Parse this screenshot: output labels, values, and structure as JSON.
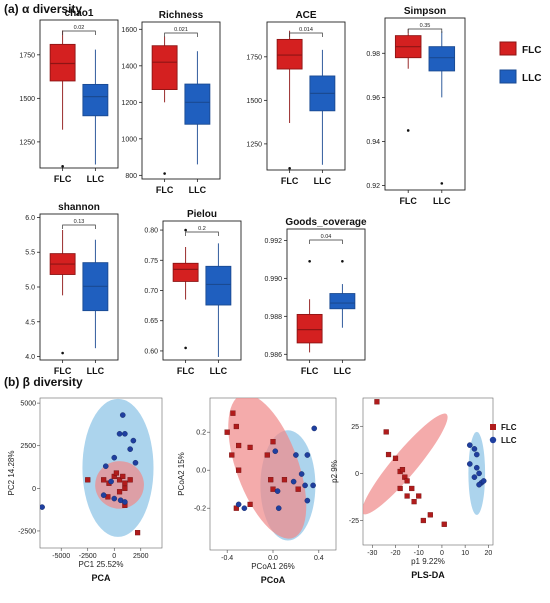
{
  "section_a_label": "(a) α diversity",
  "section_b_label": "(b) β diversity",
  "colors": {
    "FLC": "#d42020",
    "LLC": "#1f5fbf",
    "FLC_ellipse": "#f08a8a",
    "LLC_ellipse": "#8cc4e6",
    "FLC_edge": "#8e1414",
    "LLC_edge": "#1a4a92"
  },
  "alpha_legend": [
    "FLC",
    "LLC"
  ],
  "beta_legend": [
    "FLC",
    "LLC"
  ],
  "chart_data": [
    {
      "type": "box",
      "title": "chao1",
      "categories": [
        "FLC",
        "LLC"
      ],
      "ylim": [
        1100,
        1950
      ],
      "yticks": [
        "1250",
        "1500",
        "1750"
      ],
      "yticks_values": [
        1250,
        1500,
        1750
      ],
      "pvalue": "0.02",
      "series": [
        {
          "name": "FLC",
          "min": 1320,
          "q1": 1600,
          "median": 1700,
          "q3": 1810,
          "max": 1890,
          "outliers": [
            1110
          ]
        },
        {
          "name": "LLC",
          "min": 1120,
          "q1": 1400,
          "median": 1510,
          "q3": 1580,
          "max": 1780,
          "outliers": []
        }
      ]
    },
    {
      "type": "box",
      "title": "Richness",
      "categories": [
        "FLC",
        "LLC"
      ],
      "ylim": [
        780,
        1640
      ],
      "yticks": [
        "800",
        "1000",
        "1200",
        "1400",
        "1600"
      ],
      "yticks_values": [
        800,
        1000,
        1200,
        1400,
        1600
      ],
      "pvalue": "0.021",
      "series": [
        {
          "name": "FLC",
          "min": 1200,
          "q1": 1270,
          "median": 1420,
          "q3": 1510,
          "max": 1560,
          "outliers": [
            810
          ]
        },
        {
          "name": "LLC",
          "min": 860,
          "q1": 1080,
          "median": 1200,
          "q3": 1300,
          "max": 1480,
          "outliers": []
        }
      ]
    },
    {
      "type": "box",
      "title": "ACE",
      "categories": [
        "FLC",
        "LLC"
      ],
      "ylim": [
        1100,
        1950
      ],
      "yticks": [
        "1250",
        "1500",
        "1750"
      ],
      "yticks_values": [
        1250,
        1500,
        1750
      ],
      "pvalue": "0.014",
      "series": [
        {
          "name": "FLC",
          "min": 1370,
          "q1": 1680,
          "median": 1760,
          "q3": 1850,
          "max": 1900,
          "outliers": [
            1110
          ]
        },
        {
          "name": "LLC",
          "min": 1130,
          "q1": 1440,
          "median": 1540,
          "q3": 1640,
          "max": 1790,
          "outliers": []
        }
      ]
    },
    {
      "type": "box",
      "title": "Simpson",
      "categories": [
        "FLC",
        "LLC"
      ],
      "ylim": [
        0.918,
        0.996
      ],
      "yticks": [
        "0.92",
        "0.94",
        "0.96",
        "0.98"
      ],
      "yticks_values": [
        0.92,
        0.94,
        0.96,
        0.98
      ],
      "pvalue": "0.35",
      "series": [
        {
          "name": "FLC",
          "min": 0.973,
          "q1": 0.978,
          "median": 0.983,
          "q3": 0.988,
          "max": 0.991,
          "outliers": [
            0.945
          ]
        },
        {
          "name": "LLC",
          "min": 0.96,
          "q1": 0.972,
          "median": 0.978,
          "q3": 0.983,
          "max": 0.99,
          "outliers": [
            0.921
          ]
        }
      ]
    },
    {
      "type": "box",
      "title": "shannon",
      "categories": [
        "FLC",
        "LLC"
      ],
      "ylim": [
        3.95,
        6.05
      ],
      "yticks": [
        "4.0",
        "4.5",
        "5.0",
        "5.5",
        "6.0"
      ],
      "yticks_values": [
        4.0,
        4.5,
        5.0,
        5.5,
        6.0
      ],
      "pvalue": "0.13",
      "series": [
        {
          "name": "FLC",
          "min": 4.88,
          "q1": 5.18,
          "median": 5.33,
          "q3": 5.48,
          "max": 5.82,
          "outliers": [
            4.05
          ]
        },
        {
          "name": "LLC",
          "min": 4.12,
          "q1": 4.66,
          "median": 5.01,
          "q3": 5.35,
          "max": 5.68,
          "outliers": []
        }
      ]
    },
    {
      "type": "box",
      "title": "Pielou",
      "categories": [
        "FLC",
        "LLC"
      ],
      "ylim": [
        0.585,
        0.815
      ],
      "yticks": [
        "0.60",
        "0.65",
        "0.70",
        "0.75",
        "0.80"
      ],
      "yticks_values": [
        0.6,
        0.65,
        0.7,
        0.75,
        0.8
      ],
      "pvalue": "0.2",
      "series": [
        {
          "name": "FLC",
          "min": 0.685,
          "q1": 0.715,
          "median": 0.735,
          "q3": 0.745,
          "max": 0.772,
          "outliers": [
            0.605,
            0.8
          ]
        },
        {
          "name": "LLC",
          "min": 0.59,
          "q1": 0.676,
          "median": 0.71,
          "q3": 0.74,
          "max": 0.778,
          "outliers": []
        }
      ]
    },
    {
      "type": "box",
      "title": "Goods_coverage",
      "categories": [
        "FLC",
        "LLC"
      ],
      "ylim": [
        0.9857,
        0.9926
      ],
      "yticks": [
        "0.986",
        "0.988",
        "0.990",
        "0.992"
      ],
      "yticks_values": [
        0.986,
        0.988,
        0.99,
        0.992
      ],
      "pvalue": "0.04",
      "series": [
        {
          "name": "FLC",
          "min": 0.9861,
          "q1": 0.9866,
          "median": 0.9873,
          "q3": 0.9881,
          "max": 0.9889,
          "outliers": [
            0.9909
          ]
        },
        {
          "name": "LLC",
          "min": 0.9874,
          "q1": 0.9884,
          "median": 0.9887,
          "q3": 0.9892,
          "max": 0.9897,
          "outliers": [
            0.9909
          ]
        }
      ]
    },
    {
      "type": "scatter",
      "title": "PCA",
      "xlabel": "PC1 25.52%",
      "ylabel": "PC2 14.28%",
      "xlim": [
        -7000,
        4500
      ],
      "ylim": [
        -3500,
        5300
      ],
      "xticks": [
        "-5000",
        "-2500",
        "0",
        "2500"
      ],
      "xticks_values": [
        -5000,
        -2500,
        0,
        2500
      ],
      "yticks": [
        "-2500",
        "0",
        "2500",
        "5000"
      ],
      "yticks_values": [
        -2500,
        0,
        2500,
        5000
      ],
      "ellipses": [
        {
          "name": "FLC",
          "cx": 500,
          "cy": 200,
          "rx": 2300,
          "ry": 1400,
          "angle": -3
        },
        {
          "name": "LLC",
          "cx": 350,
          "cy": 1200,
          "rx": 3350,
          "ry": 4050,
          "angle": 0
        }
      ],
      "series": [
        {
          "name": "FLC",
          "points": [
            [
              -2500,
              500
            ],
            [
              -1000,
              500
            ],
            [
              -500,
              300
            ],
            [
              0,
              700
            ],
            [
              200,
              900
            ],
            [
              500,
              500
            ],
            [
              800,
              700
            ],
            [
              1000,
              300
            ],
            [
              1500,
              500
            ],
            [
              1000,
              0
            ],
            [
              500,
              -200
            ],
            [
              -600,
              -500
            ],
            [
              1000,
              -1000
            ],
            [
              2200,
              -2600
            ]
          ]
        },
        {
          "name": "LLC",
          "points": [
            [
              -6800,
              -1100
            ],
            [
              800,
              4300
            ],
            [
              500,
              3200
            ],
            [
              1000,
              3200
            ],
            [
              1800,
              2800
            ],
            [
              1500,
              2300
            ],
            [
              0,
              1800
            ],
            [
              2000,
              1500
            ],
            [
              -800,
              1300
            ],
            [
              -300,
              400
            ],
            [
              -1000,
              -400
            ],
            [
              0,
              -600
            ],
            [
              600,
              -700
            ],
            [
              1000,
              -800
            ]
          ]
        }
      ]
    },
    {
      "type": "scatter",
      "title": "PCoA",
      "xlabel": "PCoA1 26%",
      "ylabel": "PCoA2 15%",
      "xlim": [
        -0.55,
        0.55
      ],
      "ylim": [
        -0.42,
        0.38
      ],
      "xticks": [
        "-0.4",
        "0.0",
        "0.4"
      ],
      "xticks_values": [
        -0.4,
        0.0,
        0.4
      ],
      "yticks": [
        "-0.2",
        "0.0",
        "0.2"
      ],
      "yticks_values": [
        -0.2,
        0.0,
        0.2
      ],
      "ellipses": [
        {
          "name": "FLC",
          "cx": -0.05,
          "cy": 0.02,
          "rx": 0.27,
          "ry": 0.4,
          "angle": -20
        },
        {
          "name": "LLC",
          "cx": 0.13,
          "cy": -0.08,
          "rx": 0.24,
          "ry": 0.29,
          "angle": 0
        }
      ],
      "series": [
        {
          "name": "FLC",
          "points": [
            [
              -0.35,
              0.3
            ],
            [
              -0.32,
              0.23
            ],
            [
              -0.4,
              0.2
            ],
            [
              -0.3,
              0.13
            ],
            [
              -0.2,
              0.12
            ],
            [
              -0.36,
              0.08
            ],
            [
              -0.3,
              0.0
            ],
            [
              -0.05,
              0.08
            ],
            [
              0.0,
              0.15
            ],
            [
              -0.02,
              -0.05
            ],
            [
              0.1,
              -0.05
            ],
            [
              0.0,
              -0.1
            ],
            [
              -0.2,
              -0.18
            ],
            [
              0.22,
              -0.1
            ],
            [
              -0.32,
              -0.2
            ]
          ]
        },
        {
          "name": "LLC",
          "points": [
            [
              0.36,
              0.22
            ],
            [
              0.02,
              0.1
            ],
            [
              0.2,
              0.08
            ],
            [
              0.3,
              0.08
            ],
            [
              0.25,
              -0.02
            ],
            [
              0.18,
              -0.06
            ],
            [
              0.28,
              -0.08
            ],
            [
              0.35,
              -0.08
            ],
            [
              0.04,
              -0.11
            ],
            [
              -0.3,
              -0.18
            ],
            [
              -0.25,
              -0.2
            ],
            [
              0.05,
              -0.2
            ],
            [
              0.3,
              -0.16
            ]
          ]
        }
      ]
    },
    {
      "type": "scatter",
      "title": "PLS-DA",
      "xlabel": "p1 9.22%",
      "ylabel": "p2 9%",
      "xlim": [
        -34,
        22
      ],
      "ylim": [
        -38,
        40
      ],
      "xticks": [
        "-30",
        "-20",
        "-10",
        "0",
        "10",
        "20"
      ],
      "xticks_values": [
        -30,
        -20,
        -10,
        0,
        10,
        20
      ],
      "yticks": [
        "-25",
        "0",
        "25"
      ],
      "yticks_values": [
        -25,
        0,
        25
      ],
      "ellipses": [
        {
          "name": "FLC",
          "cx": -16,
          "cy": 5,
          "rx": 28,
          "ry": 6.5,
          "angle": -50
        },
        {
          "name": "LLC",
          "cx": 15,
          "cy": 0,
          "rx": 3.6,
          "ry": 22,
          "angle": 0
        }
      ],
      "series": [
        {
          "name": "FLC",
          "points": [
            [
              -28,
              38
            ],
            [
              -24,
              22
            ],
            [
              -23,
              10
            ],
            [
              -20,
              8
            ],
            [
              -18,
              1
            ],
            [
              -17,
              2
            ],
            [
              -16,
              -2
            ],
            [
              -15,
              -4
            ],
            [
              -18,
              -8
            ],
            [
              -15,
              -12
            ],
            [
              -13,
              -8
            ],
            [
              -10,
              -12
            ],
            [
              -12,
              -15
            ],
            [
              -8,
              -25
            ],
            [
              -5,
              -22
            ],
            [
              1,
              -27
            ]
          ]
        },
        {
          "name": "LLC",
          "points": [
            [
              12,
              15
            ],
            [
              14,
              13
            ],
            [
              15,
              10
            ],
            [
              12,
              5
            ],
            [
              15,
              3
            ],
            [
              16,
              0
            ],
            [
              14,
              -2
            ],
            [
              17,
              -5
            ],
            [
              16,
              -6
            ],
            [
              18,
              -4
            ]
          ]
        }
      ]
    }
  ]
}
